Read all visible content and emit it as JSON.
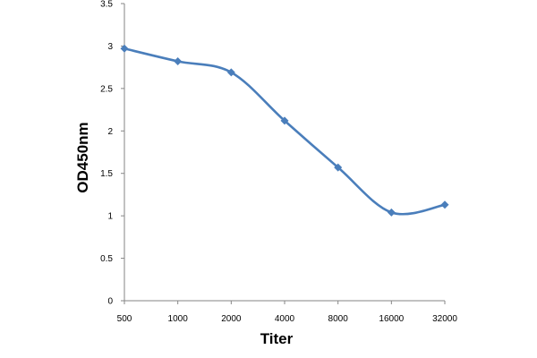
{
  "chart_data": {
    "type": "line",
    "xlabel": "Titer",
    "ylabel": "OD450nm",
    "categories": [
      "500",
      "1000",
      "2000",
      "4000",
      "8000",
      "16000",
      "32000"
    ],
    "series": [
      {
        "values": [
          2.97,
          2.82,
          2.69,
          2.12,
          1.57,
          1.04,
          1.13
        ]
      }
    ],
    "ylim": [
      0,
      3.5
    ],
    "yticks": [
      "0",
      "0.5",
      "1",
      "1.5",
      "2",
      "2.5",
      "3",
      "3.5"
    ],
    "grid": false,
    "legend": "none",
    "line_color": "#4a7ebb",
    "axis_color": "#868686"
  }
}
